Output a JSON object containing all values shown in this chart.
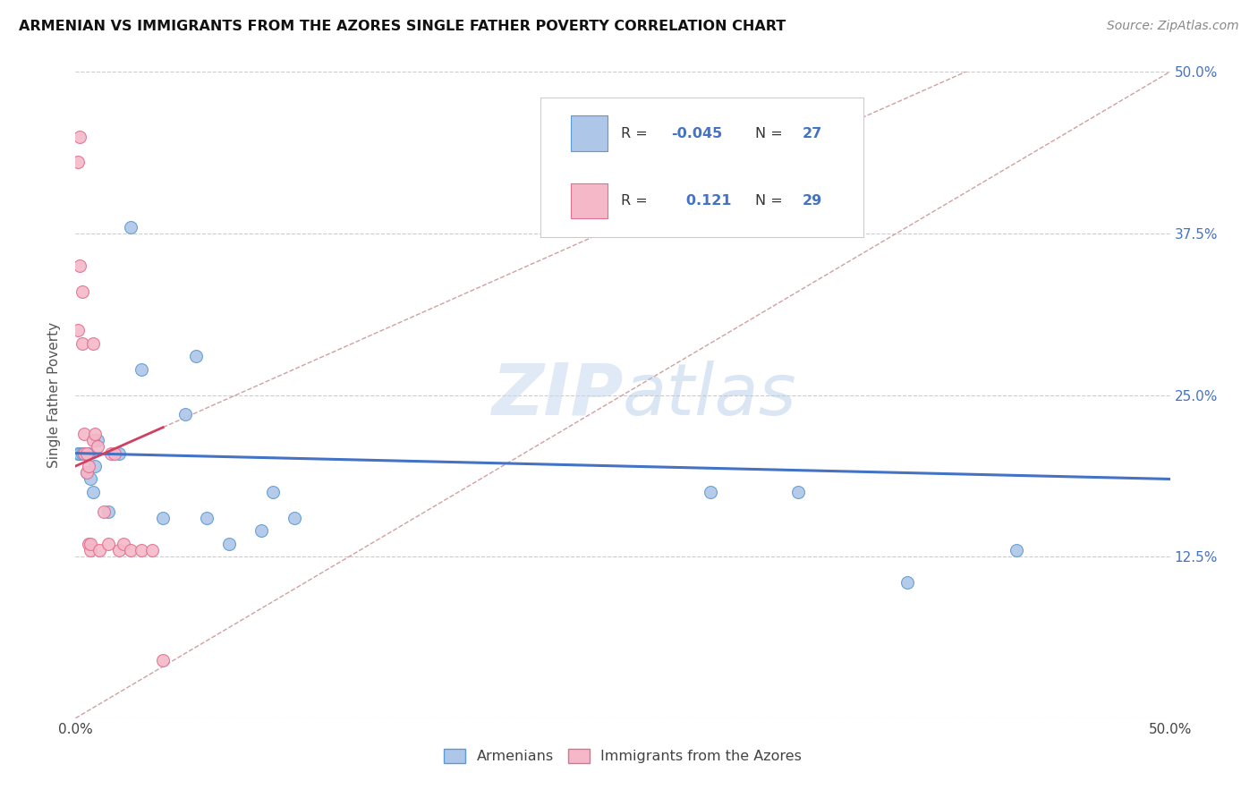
{
  "title": "ARMENIAN VS IMMIGRANTS FROM THE AZORES SINGLE FATHER POVERTY CORRELATION CHART",
  "source": "Source: ZipAtlas.com",
  "ylabel": "Single Father Poverty",
  "legend_label1": "Armenians",
  "legend_label2": "Immigrants from the Azores",
  "R1": "-0.045",
  "N1": "27",
  "R2": "0.121",
  "N2": "29",
  "color_blue": "#aec6e8",
  "color_blue_dark": "#5b9bd5",
  "color_blue_line": "#4472c4",
  "color_pink": "#f4b8c8",
  "color_pink_dark": "#e07090",
  "color_pink_line": "#d04060",
  "color_diag": "#d0a0a0",
  "watermark": "ZIPatlas",
  "xlim": [
    0.0,
    0.5
  ],
  "ylim": [
    0.0,
    0.5
  ],
  "armenian_x": [
    0.001,
    0.002,
    0.003,
    0.004,
    0.005,
    0.005,
    0.006,
    0.007,
    0.008,
    0.009,
    0.01,
    0.015,
    0.02,
    0.025,
    0.03,
    0.04,
    0.05,
    0.055,
    0.06,
    0.07,
    0.085,
    0.09,
    0.1,
    0.29,
    0.33,
    0.38,
    0.43
  ],
  "armenian_y": [
    0.205,
    0.205,
    0.205,
    0.205,
    0.205,
    0.19,
    0.205,
    0.185,
    0.175,
    0.195,
    0.215,
    0.16,
    0.205,
    0.38,
    0.27,
    0.155,
    0.235,
    0.28,
    0.155,
    0.135,
    0.145,
    0.175,
    0.155,
    0.175,
    0.175,
    0.105,
    0.13
  ],
  "azores_x": [
    0.001,
    0.001,
    0.002,
    0.002,
    0.003,
    0.003,
    0.004,
    0.004,
    0.005,
    0.005,
    0.006,
    0.006,
    0.007,
    0.007,
    0.008,
    0.008,
    0.009,
    0.01,
    0.011,
    0.013,
    0.015,
    0.016,
    0.018,
    0.02,
    0.022,
    0.025,
    0.03,
    0.035,
    0.04
  ],
  "azores_y": [
    0.3,
    0.43,
    0.45,
    0.35,
    0.33,
    0.29,
    0.205,
    0.22,
    0.205,
    0.19,
    0.195,
    0.135,
    0.13,
    0.135,
    0.215,
    0.29,
    0.22,
    0.21,
    0.13,
    0.16,
    0.135,
    0.205,
    0.205,
    0.13,
    0.135,
    0.13,
    0.13,
    0.13,
    0.045
  ],
  "blue_line_x0": 0.0,
  "blue_line_y0": 0.205,
  "blue_line_x1": 0.5,
  "blue_line_y1": 0.185,
  "pink_line_x0": 0.0,
  "pink_line_y0": 0.195,
  "pink_line_x1": 0.04,
  "pink_line_y1": 0.225
}
